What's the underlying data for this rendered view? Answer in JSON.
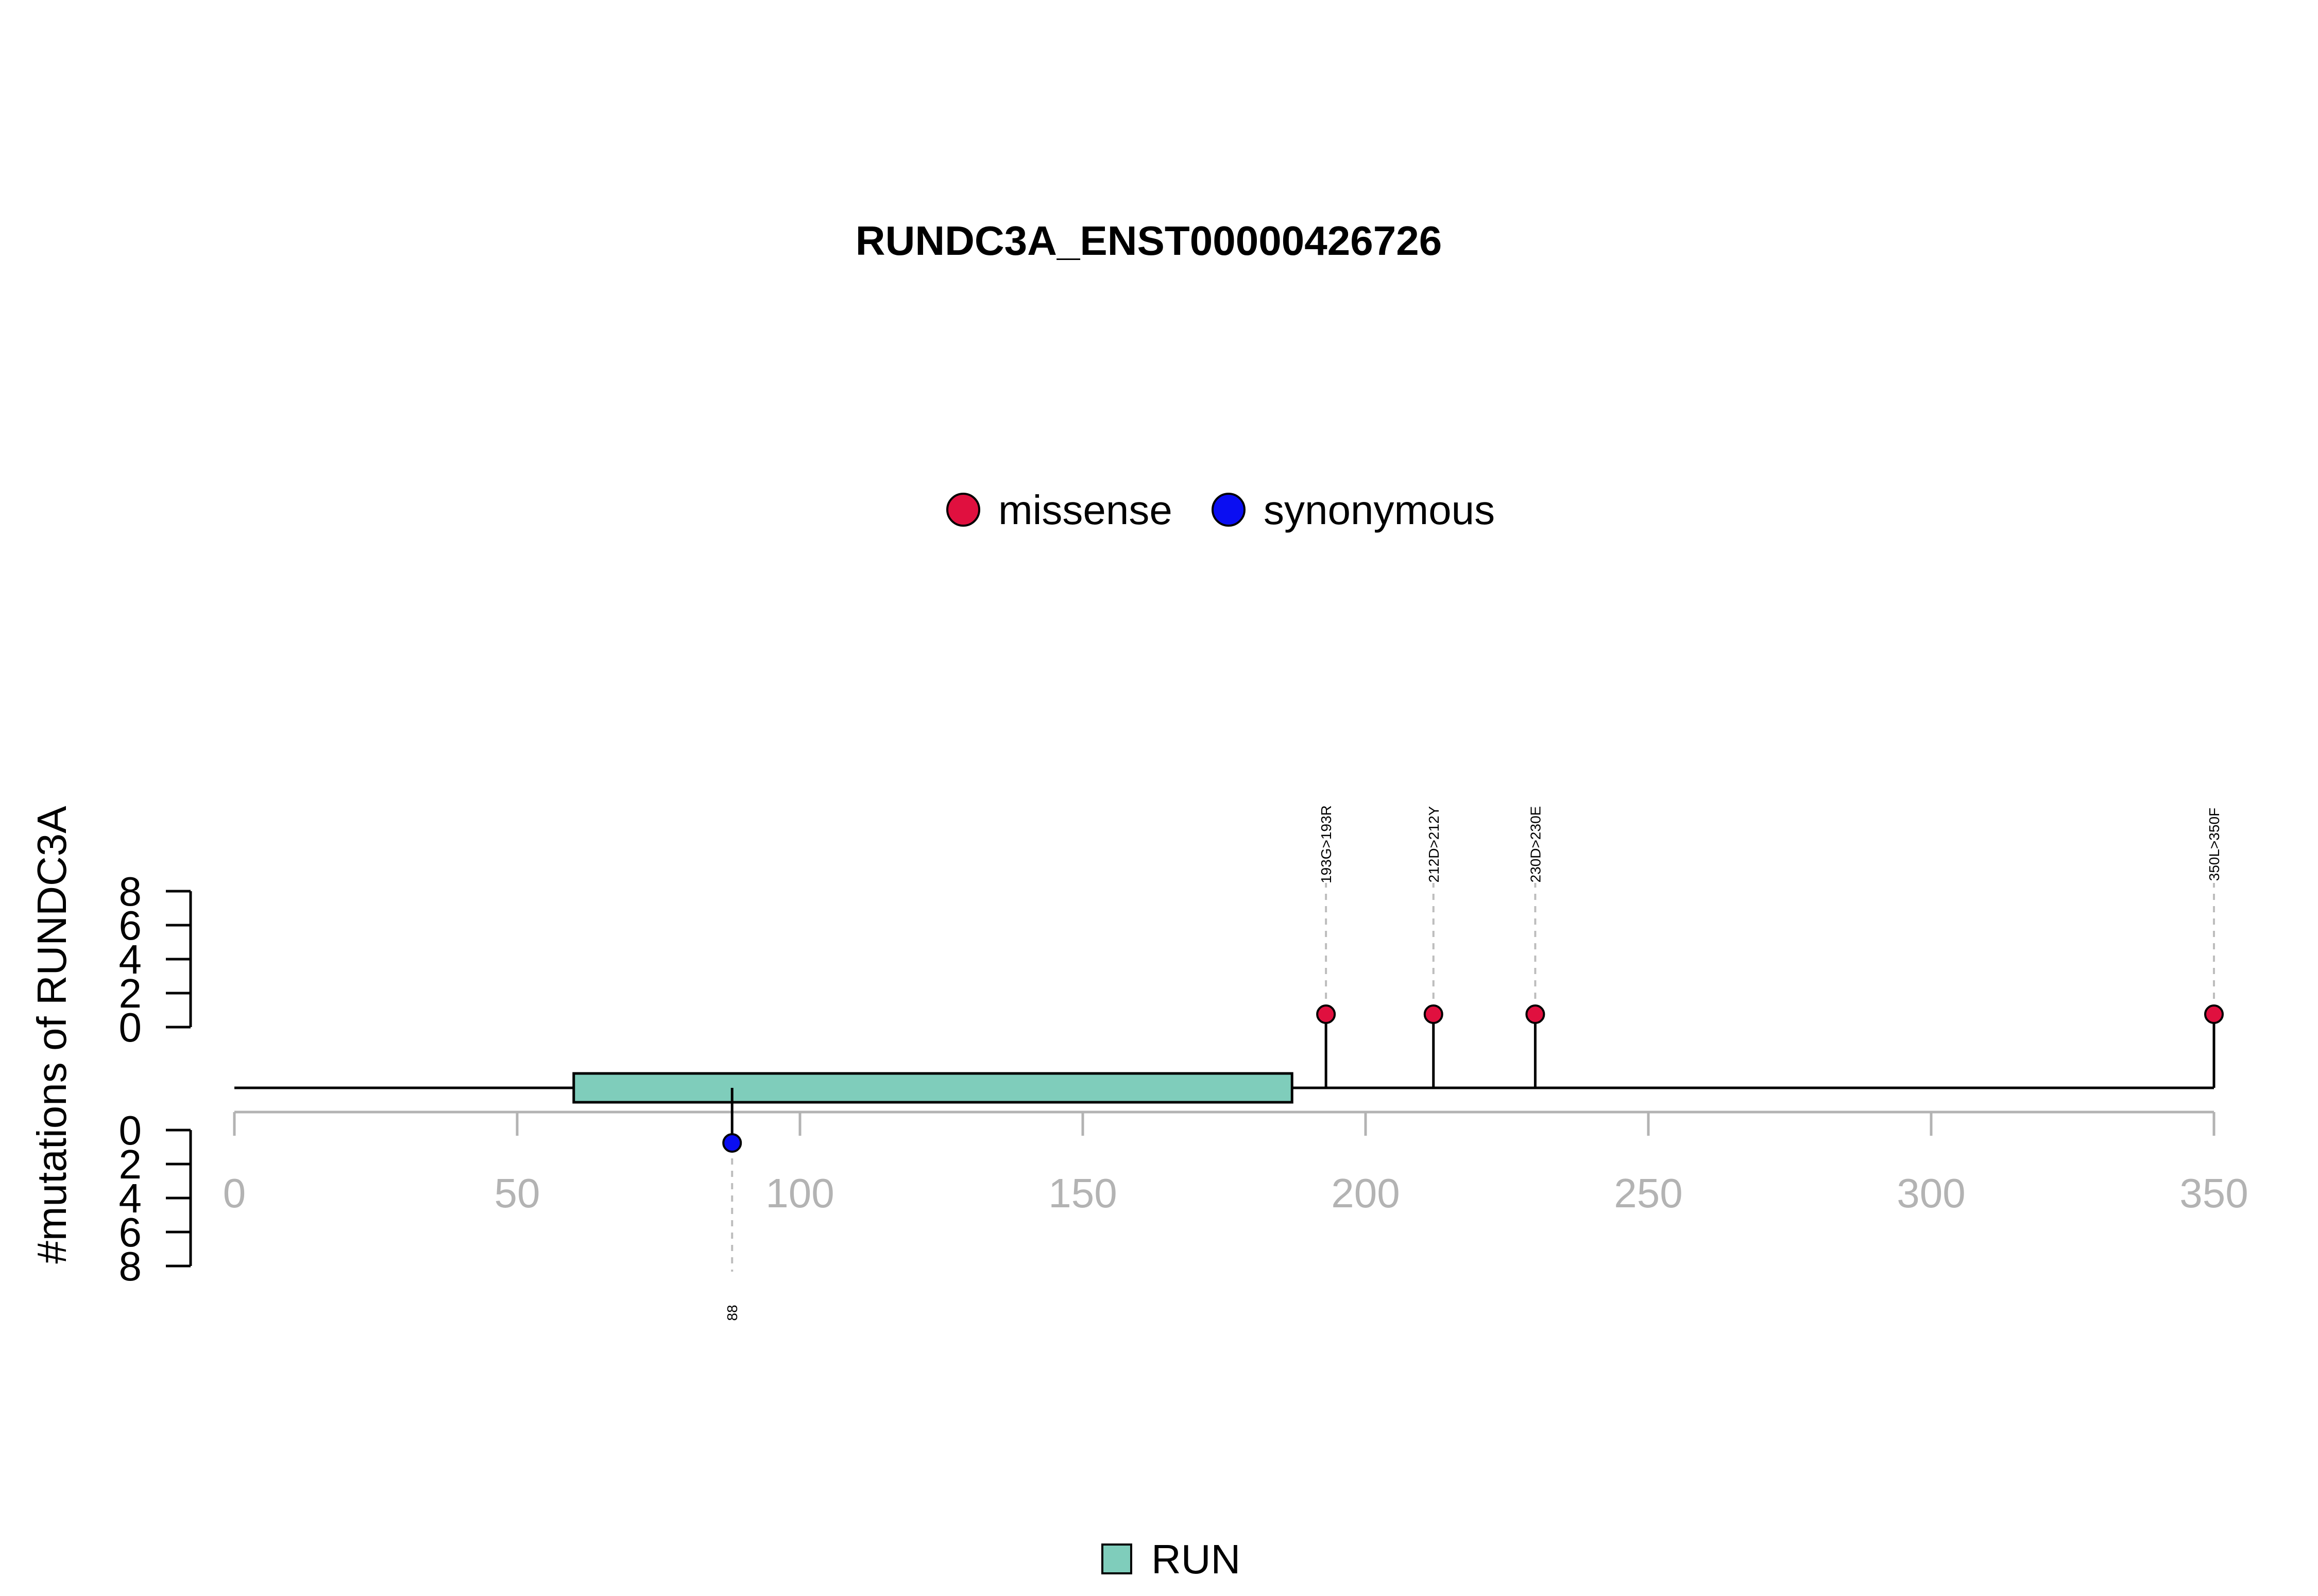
{
  "chart_data": {
    "type": "lollipop",
    "title": "RUNDC3A_ENST00000426726",
    "ylabel": "#mutations of RUNDC3A",
    "xlim": [
      0,
      350
    ],
    "x_ticks": [
      0,
      50,
      100,
      150,
      200,
      250,
      300,
      350
    ],
    "y_ticks_upper": [
      0,
      2,
      4,
      6,
      8
    ],
    "y_ticks_lower": [
      0,
      2,
      4,
      6,
      8
    ],
    "legend_top": [
      {
        "name": "missense",
        "color": "#e0103f"
      },
      {
        "name": "synonymous",
        "color": "#0a0ef2"
      }
    ],
    "legend_bottom": [
      {
        "name": "RUN",
        "color": "#7fcdbb"
      }
    ],
    "domains": [
      {
        "name": "RUN",
        "start": 60,
        "end": 187,
        "color": "#7fcdbb"
      }
    ],
    "mutations": [
      {
        "position": 193,
        "count": 1,
        "type": "missense",
        "label": "193G>193R",
        "side": "upper"
      },
      {
        "position": 212,
        "count": 1,
        "type": "missense",
        "label": "212D>212Y",
        "side": "upper"
      },
      {
        "position": 230,
        "count": 1,
        "type": "missense",
        "label": "230D>230E",
        "side": "upper"
      },
      {
        "position": 350,
        "count": 1,
        "type": "missense",
        "label": "350L>350F",
        "side": "upper"
      },
      {
        "position": 88,
        "count": 1,
        "type": "synonymous",
        "label": "88",
        "side": "lower"
      }
    ]
  }
}
